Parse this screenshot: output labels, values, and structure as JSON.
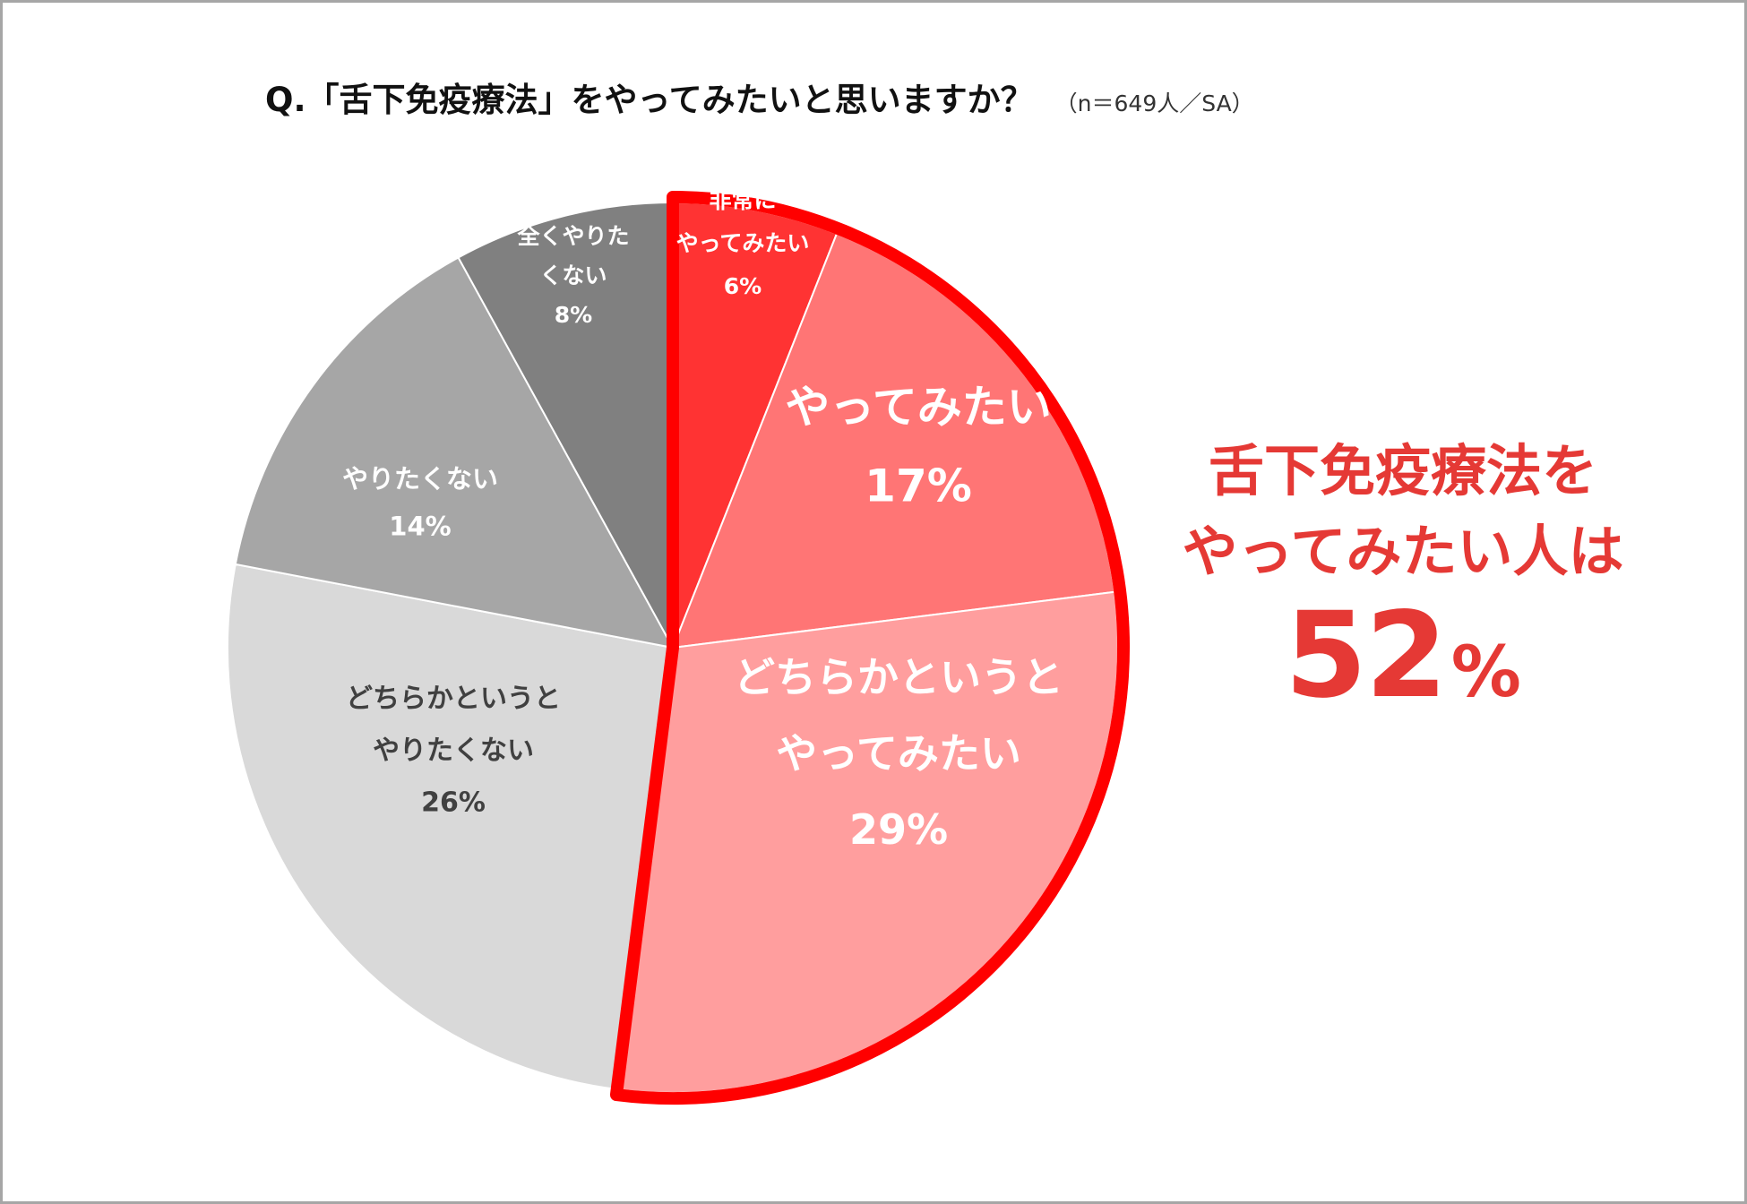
{
  "header": {
    "question": "Q.「舌下免疫療法」をやってみたいと思いますか？",
    "note": "（n＝649人／SA）"
  },
  "chart_data": {
    "type": "pie",
    "title": "Q.「舌下免疫療法」をやってみたいと思いますか？",
    "sample": "（n＝649人／SA）",
    "start": "top (12 o'clock), clockwise",
    "slices": [
      {
        "key": "very",
        "label_lines": [
          "非常に",
          "やってみたい"
        ],
        "value": 6,
        "value_label": "6%",
        "color": "#ff3333",
        "text_color": "#ffffff",
        "highlight": true
      },
      {
        "key": "want",
        "label_lines": [
          "やってみたい"
        ],
        "value": 17,
        "value_label": "17%",
        "color": "#ff7575",
        "text_color": "#ffffff",
        "highlight": true
      },
      {
        "key": "rather_want",
        "label_lines": [
          "どちらかというと",
          "やってみたい"
        ],
        "value": 29,
        "value_label": "29%",
        "color": "#ff9e9e",
        "text_color": "#ffffff",
        "highlight": true
      },
      {
        "key": "rather_not",
        "label_lines": [
          "どちらかというと",
          "やりたくない"
        ],
        "value": 26,
        "value_label": "26%",
        "color": "#d9d9d9",
        "text_color": "#404040",
        "highlight": false
      },
      {
        "key": "not",
        "label_lines": [
          "やりたくない"
        ],
        "value": 14,
        "value_label": "14%",
        "color": "#a6a6a6",
        "text_color": "#ffffff",
        "highlight": false
      },
      {
        "key": "not_at_all",
        "label_lines": [
          "全くやりた",
          "くない"
        ],
        "value": 8,
        "value_label": "8%",
        "color": "#808080",
        "text_color": "#ffffff",
        "highlight": false
      }
    ],
    "highlight_outline_color": "#ff0000",
    "callout": {
      "line1": "舌下免疫療法を",
      "line2": "やってみたい人は",
      "value": "52",
      "unit": "%",
      "color": "#e53935"
    }
  }
}
